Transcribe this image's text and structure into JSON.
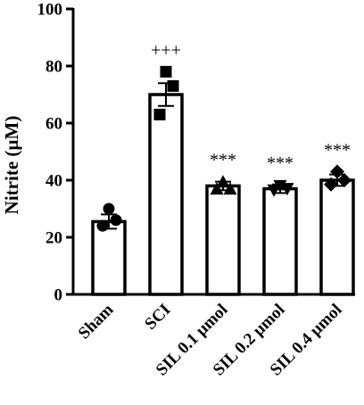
{
  "chart_data": {
    "type": "bar",
    "title": "",
    "xlabel": "",
    "ylabel": "Nitrite (µM)",
    "ylim": [
      0,
      100
    ],
    "yticks": [
      0,
      20,
      40,
      60,
      80,
      100
    ],
    "categories": [
      "Sham",
      "SCI",
      "SIL 0.1 µmol",
      "SIL 0.2 µmol",
      "SIL 0.4 µmol"
    ],
    "values": [
      25.5,
      70,
      38,
      37,
      40
    ],
    "errors": [
      2.5,
      4,
      1.5,
      1.5,
      2
    ],
    "significance": [
      "",
      "+++",
      "***",
      "***",
      "***"
    ],
    "points": [
      {
        "marker": "circle",
        "values": [
          30,
          26,
          24
        ]
      },
      {
        "marker": "square",
        "values": [
          78,
          73,
          63
        ]
      },
      {
        "marker": "triangle",
        "values": [
          39.5,
          37,
          37
        ]
      },
      {
        "marker": "triangle-down",
        "values": [
          38,
          37,
          36.5
        ]
      },
      {
        "marker": "diamond",
        "values": [
          43,
          40,
          38.5
        ]
      }
    ],
    "grid": false,
    "legend": "none"
  }
}
